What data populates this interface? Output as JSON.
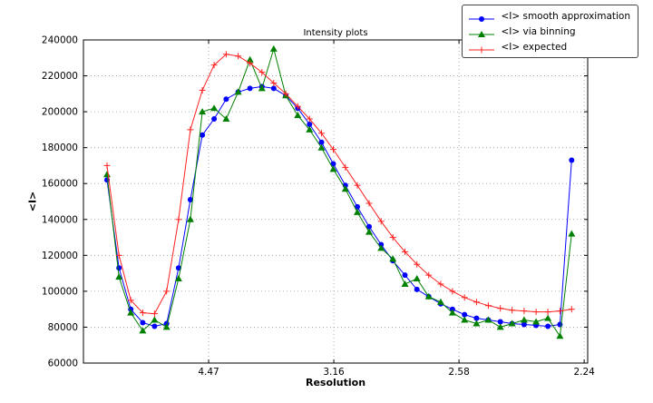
{
  "figure": {
    "title": "Intensity plots",
    "xlabel": "Resolution",
    "ylabel": "<I>"
  },
  "legend": {
    "entries": [
      {
        "label": "<I> smooth approximation",
        "color": "#0000ff",
        "marker": "circle"
      },
      {
        "label": "<I> via binning",
        "color": "#008000",
        "marker": "triangle"
      },
      {
        "label": "<I> expected",
        "color": "#ff2020",
        "marker": "plus"
      }
    ]
  },
  "chart_data": {
    "type": "line",
    "title": "Intensity plots",
    "xlabel": "Resolution",
    "ylabel": "<I>",
    "grid": true,
    "legend_position": "upper right, outside top of axes",
    "x_axis": {
      "units": "1/d^2 (resolution in angstroms shown on tick labels)",
      "range": [
        0,
        0.2014
      ],
      "ticks": [
        0.05,
        0.1,
        0.15,
        0.2
      ],
      "tick_labels": [
        "4.47",
        "3.16",
        "2.58",
        "2.24"
      ]
    },
    "y_axis": {
      "range": [
        60000,
        240000
      ],
      "ticks": [
        60000,
        80000,
        100000,
        120000,
        140000,
        160000,
        180000,
        200000,
        220000,
        240000
      ],
      "tick_labels": [
        "60000",
        "80000",
        "100000",
        "120000",
        "140000",
        "160000",
        "180000",
        "200000",
        "220000",
        "240000"
      ]
    },
    "x": [
      0.0094,
      0.0142,
      0.0189,
      0.0237,
      0.0284,
      0.0332,
      0.038,
      0.0427,
      0.0475,
      0.0522,
      0.057,
      0.0618,
      0.0665,
      0.0713,
      0.076,
      0.0808,
      0.0856,
      0.0903,
      0.0951,
      0.0998,
      0.1046,
      0.1094,
      0.1141,
      0.1189,
      0.1236,
      0.1284,
      0.1332,
      0.1379,
      0.1427,
      0.1474,
      0.1522,
      0.157,
      0.1617,
      0.1665,
      0.1712,
      0.176,
      0.1808,
      0.1855,
      0.1903,
      0.195
    ],
    "series": [
      {
        "name": "<I> smooth approximation",
        "color": "#0000ff",
        "marker": "circle",
        "values": [
          162000,
          113000,
          90000,
          82500,
          80500,
          82000,
          113000,
          151000,
          187000,
          196000,
          207000,
          211000,
          213000,
          214000,
          213000,
          209000,
          202000,
          193000,
          183000,
          171000,
          159000,
          147000,
          136000,
          126000,
          117000,
          109000,
          101000,
          97000,
          93000,
          90000,
          87000,
          85000,
          84000,
          83000,
          82000,
          81500,
          81000,
          80500,
          81500,
          173000
        ]
      },
      {
        "name": "<I> via binning",
        "color": "#008000",
        "marker": "triangle",
        "values": [
          165000,
          108000,
          88000,
          78000,
          84000,
          80000,
          107000,
          140000,
          200000,
          202000,
          196000,
          211000,
          229000,
          213000,
          235000,
          209000,
          198000,
          190000,
          180000,
          168000,
          157000,
          144000,
          133000,
          124000,
          118000,
          104000,
          107000,
          97000,
          94000,
          88000,
          84000,
          82000,
          84000,
          80000,
          82000,
          84000,
          83000,
          85000,
          75000,
          132000
        ]
      },
      {
        "name": "<I> expected",
        "color": "#ff2020",
        "marker": "plus",
        "values": [
          170000,
          120000,
          95000,
          88000,
          87500,
          100000,
          140000,
          190000,
          212000,
          226000,
          232000,
          231000,
          227000,
          222000,
          216000,
          210000,
          203000,
          196000,
          188000,
          179000,
          169000,
          159000,
          149000,
          139000,
          130000,
          122000,
          115000,
          109000,
          104000,
          100000,
          96500,
          94000,
          92000,
          90500,
          89500,
          89000,
          88500,
          88500,
          89000,
          90000
        ]
      }
    ]
  }
}
